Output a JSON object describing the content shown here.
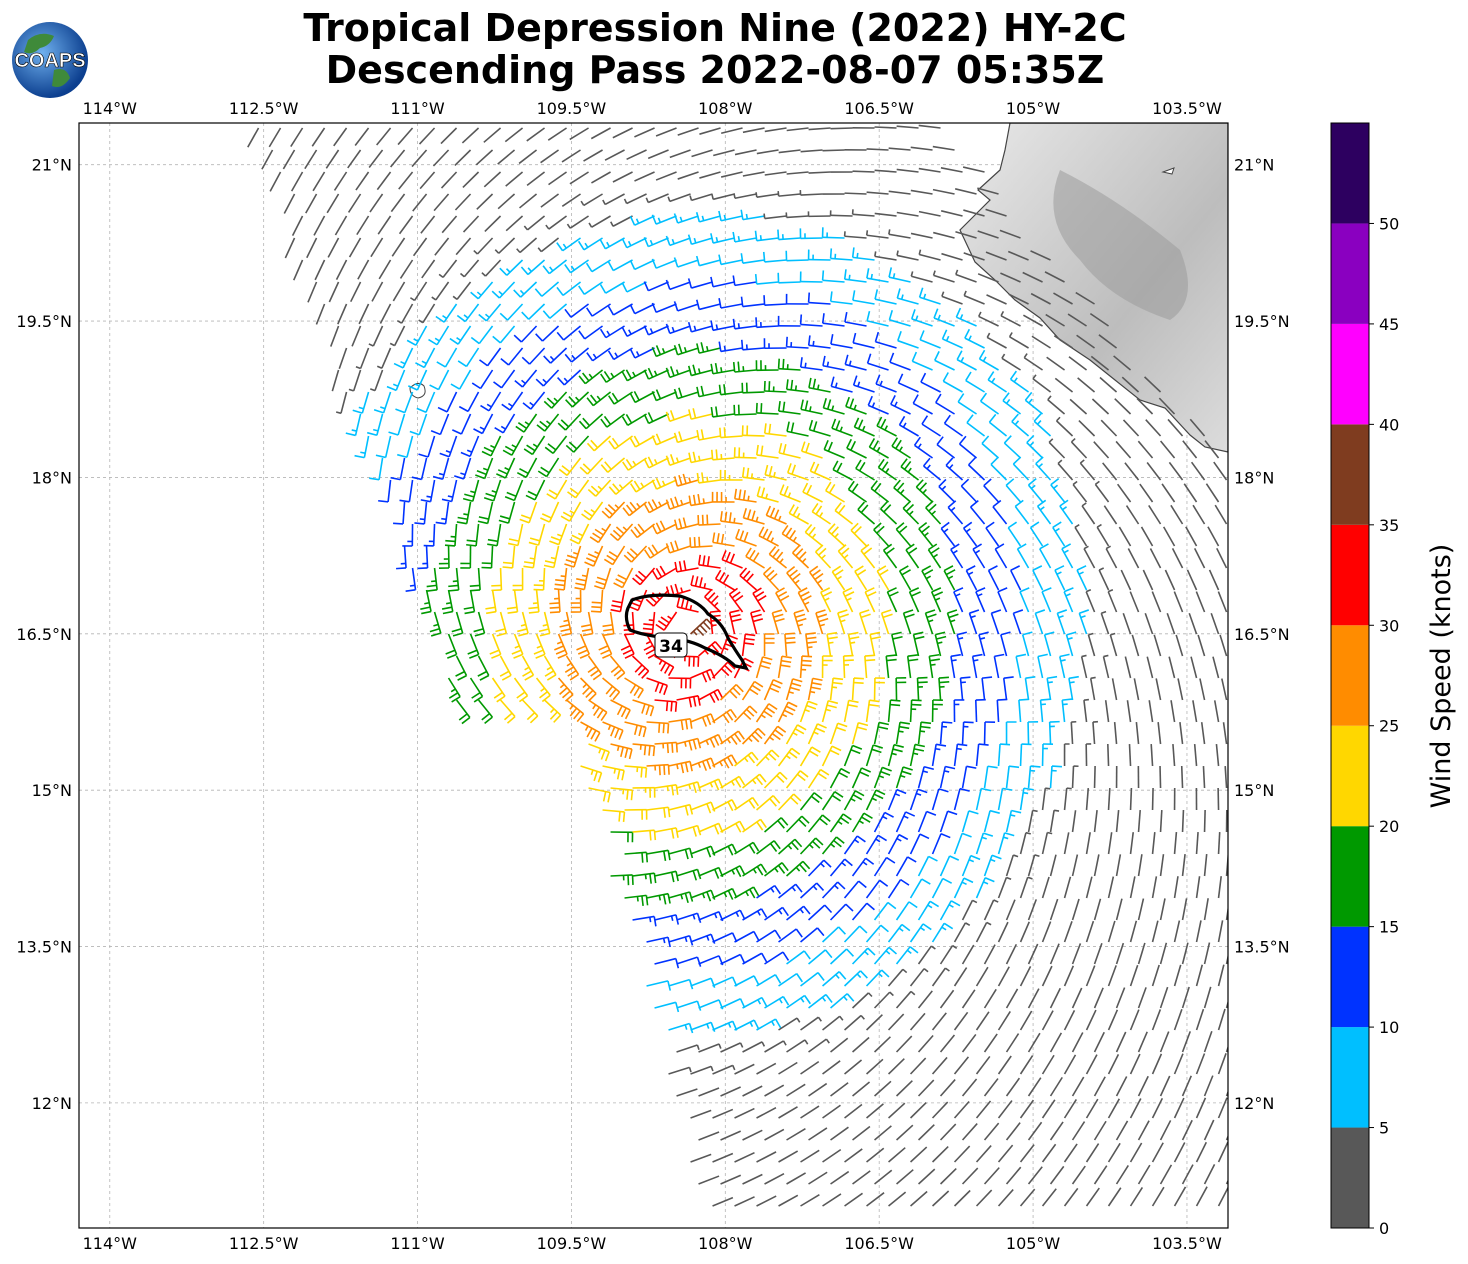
{
  "title_line1": "Tropical Depression Nine (2022) HY-2C",
  "title_line2": "Descending Pass 2022-08-07 05:35Z",
  "logo_text": "COAPS",
  "lon_labels": [
    "114°W",
    "112.5°W",
    "111°W",
    "109.5°W",
    "108°W",
    "106.5°W",
    "105°W",
    "103.5°W"
  ],
  "lat_labels": [
    "21°N",
    "19.5°N",
    "18°N",
    "16.5°N",
    "15°N",
    "13.5°N",
    "12°N"
  ],
  "contour_label": "34",
  "colorbar": {
    "label": "Wind Speed (knots)",
    "ticks": [
      "0",
      "5",
      "10",
      "15",
      "20",
      "25",
      "30",
      "35",
      "40",
      "45",
      "50"
    ],
    "colors": [
      "#585858",
      "#00bfff",
      "#0033ff",
      "#009900",
      "#ffd700",
      "#ff8c00",
      "#ff0000",
      "#7f3c1f",
      "#ff00ff",
      "#8a00c0",
      "#2d0060"
    ]
  },
  "map": {
    "lon_range": [
      -114.3,
      -103.1
    ],
    "lat_range": [
      10.8,
      21.4
    ],
    "land_colors": [
      "#f5f5f5",
      "#9a9a9a"
    ]
  }
}
